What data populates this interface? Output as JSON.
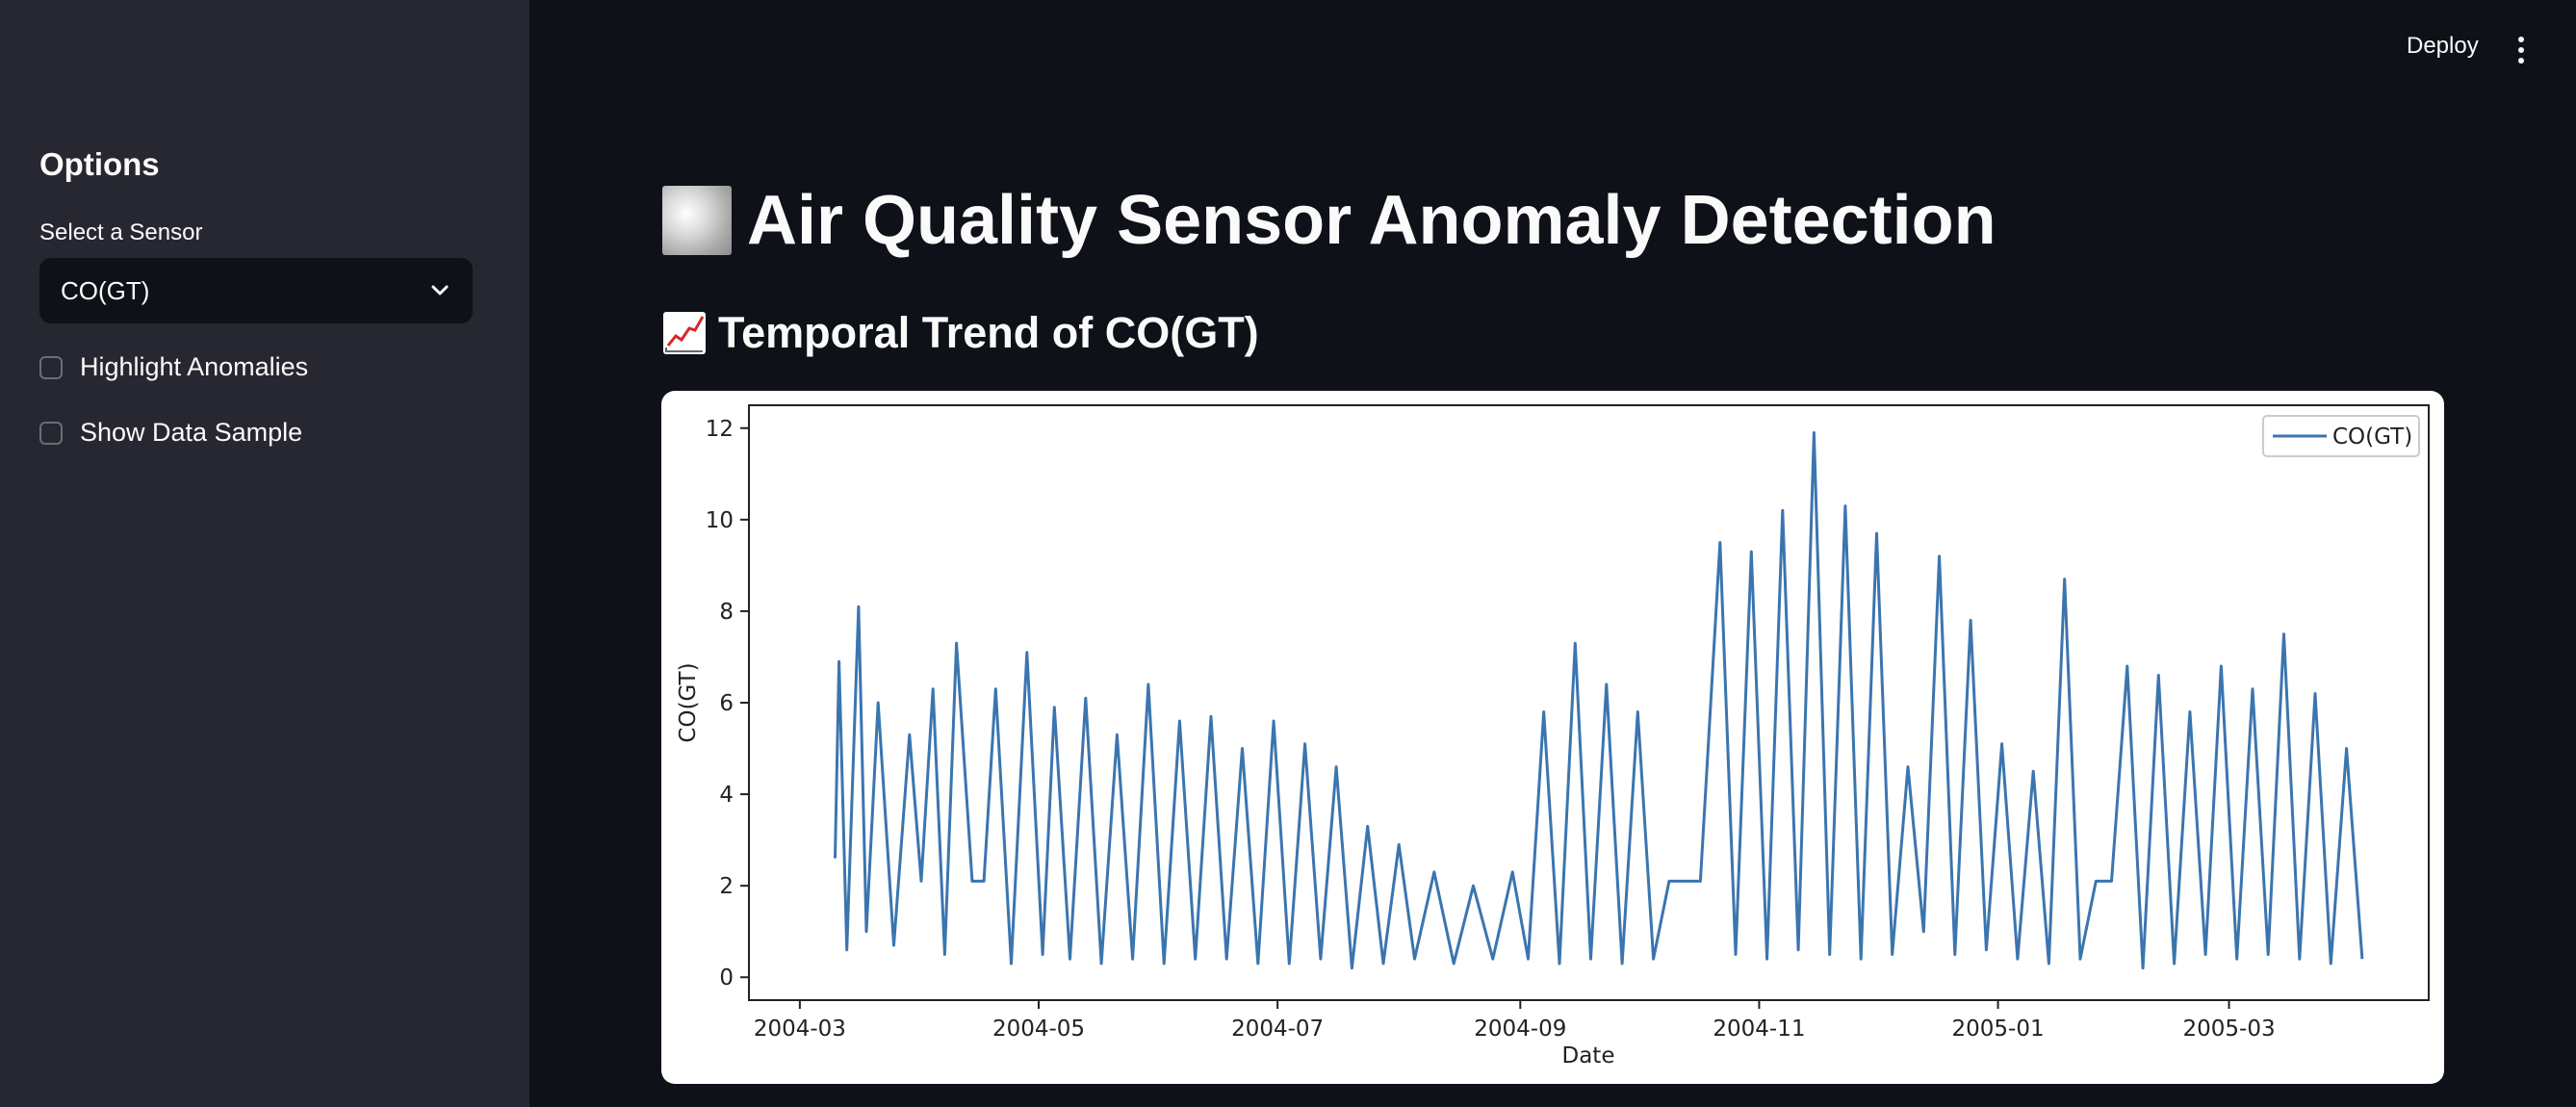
{
  "sidebar": {
    "title": "Options",
    "select_label": "Select a Sensor",
    "select_value": "CO(GT)",
    "checkboxes": [
      {
        "label": "Highlight Anomalies",
        "checked": false
      },
      {
        "label": "Show Data Sample",
        "checked": false
      }
    ]
  },
  "header": {
    "deploy_label": "Deploy",
    "menu_icon": "kebab-menu-icon"
  },
  "main": {
    "title": "Air Quality Sensor Anomaly Detection",
    "title_icon": "fog-icon",
    "subtitle": "Temporal Trend of CO(GT)",
    "subtitle_icon": "chart-increasing-icon"
  },
  "colors": {
    "background": "#0e1117",
    "sidebar": "#262730",
    "series": "#3b75af"
  },
  "chart_data": {
    "type": "line",
    "xlabel": "Date",
    "ylabel": "CO(GT)",
    "ylim": [
      -0.5,
      12.5
    ],
    "xlim": [
      "2004-02-17",
      "2005-04-21"
    ],
    "x_ticks": [
      "2004-03",
      "2004-05",
      "2004-07",
      "2004-09",
      "2004-11",
      "2005-01",
      "2005-03"
    ],
    "y_ticks": [
      0,
      2,
      4,
      6,
      8,
      10,
      12
    ],
    "legend": "top-right",
    "grid": false,
    "series": [
      {
        "name": "CO(GT)",
        "x": [
          "2004-03-10",
          "2004-03-11",
          "2004-03-13",
          "2004-03-16",
          "2004-03-18",
          "2004-03-21",
          "2004-03-25",
          "2004-03-29",
          "2004-04-01",
          "2004-04-04",
          "2004-04-07",
          "2004-04-10",
          "2004-04-14",
          "2004-04-17",
          "2004-04-20",
          "2004-04-24",
          "2004-04-28",
          "2004-05-02",
          "2004-05-05",
          "2004-05-09",
          "2004-05-13",
          "2004-05-17",
          "2004-05-21",
          "2004-05-25",
          "2004-05-29",
          "2004-06-02",
          "2004-06-06",
          "2004-06-10",
          "2004-06-14",
          "2004-06-18",
          "2004-06-22",
          "2004-06-26",
          "2004-06-30",
          "2004-07-04",
          "2004-07-08",
          "2004-07-12",
          "2004-07-16",
          "2004-07-20",
          "2004-07-24",
          "2004-07-28",
          "2004-08-01",
          "2004-08-05",
          "2004-08-10",
          "2004-08-15",
          "2004-08-20",
          "2004-08-25",
          "2004-08-30",
          "2004-09-03",
          "2004-09-07",
          "2004-09-11",
          "2004-09-15",
          "2004-09-19",
          "2004-09-23",
          "2004-09-27",
          "2004-10-01",
          "2004-10-05",
          "2004-10-09",
          "2004-10-13",
          "2004-10-17",
          "2004-10-22",
          "2004-10-26",
          "2004-10-30",
          "2004-11-03",
          "2004-11-07",
          "2004-11-11",
          "2004-11-15",
          "2004-11-19",
          "2004-11-23",
          "2004-11-27",
          "2004-12-01",
          "2004-12-05",
          "2004-12-09",
          "2004-12-13",
          "2004-12-17",
          "2004-12-21",
          "2004-12-25",
          "2004-12-29",
          "2005-01-02",
          "2005-01-06",
          "2005-01-10",
          "2005-01-14",
          "2005-01-18",
          "2005-01-22",
          "2005-01-26",
          "2005-01-30",
          "2005-02-03",
          "2005-02-07",
          "2005-02-11",
          "2005-02-15",
          "2005-02-19",
          "2005-02-23",
          "2005-02-27",
          "2005-03-03",
          "2005-03-07",
          "2005-03-11",
          "2005-03-15",
          "2005-03-19",
          "2005-03-23",
          "2005-03-27",
          "2005-03-31",
          "2005-04-04"
        ],
        "values": [
          2.6,
          6.9,
          0.6,
          8.1,
          1.0,
          6.0,
          0.7,
          5.3,
          2.1,
          6.3,
          0.5,
          7.3,
          2.1,
          2.1,
          6.3,
          0.3,
          7.1,
          0.5,
          5.9,
          0.4,
          6.1,
          0.3,
          5.3,
          0.4,
          6.4,
          0.3,
          5.6,
          0.4,
          5.7,
          0.4,
          5.0,
          0.3,
          5.6,
          0.3,
          5.1,
          0.4,
          4.6,
          0.2,
          3.3,
          0.3,
          2.9,
          0.4,
          2.3,
          0.3,
          2.0,
          0.4,
          2.3,
          0.4,
          5.8,
          0.3,
          7.3,
          0.4,
          6.4,
          0.3,
          5.8,
          0.4,
          2.1,
          2.1,
          2.1,
          9.5,
          0.5,
          9.3,
          0.4,
          10.2,
          0.6,
          11.9,
          0.5,
          10.3,
          0.4,
          9.7,
          0.5,
          4.6,
          1.0,
          9.2,
          0.5,
          7.8,
          0.6,
          5.1,
          0.4,
          4.5,
          0.3,
          8.7,
          0.4,
          2.1,
          2.1,
          6.8,
          0.2,
          6.6,
          0.3,
          5.8,
          0.5,
          6.8,
          0.4,
          6.3,
          0.5,
          7.5,
          0.4,
          6.2,
          0.3,
          5.0,
          0.4
        ]
      }
    ]
  }
}
